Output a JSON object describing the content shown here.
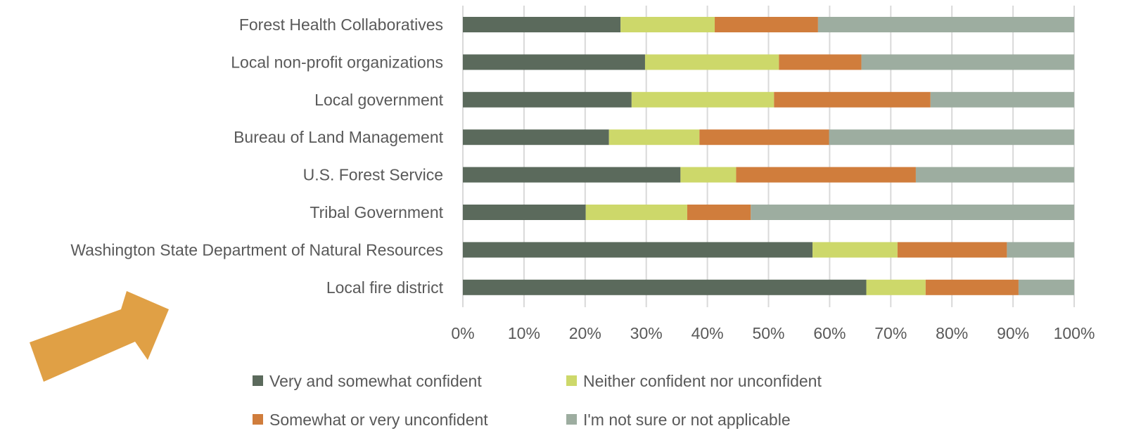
{
  "chart_data": {
    "type": "bar",
    "orientation": "horizontal",
    "stacked": "percent",
    "categories": [
      "Forest Health Collaboratives",
      "Local non-profit organizations",
      "Local government",
      "Bureau of Land Management",
      "U.S. Forest Service",
      "Tribal Government",
      "Washington State Department of Natural Resources",
      "Local fire district"
    ],
    "series": [
      {
        "name": "Very and somewhat confident",
        "color": "#5b6a5c",
        "values": [
          25.8,
          29.8,
          27.6,
          23.9,
          35.6,
          20.1,
          57.2,
          66.0
        ]
      },
      {
        "name": "Neither confident nor unconfident",
        "color": "#cdd86a",
        "values": [
          15.4,
          21.9,
          23.3,
          14.8,
          9.1,
          16.6,
          13.9,
          9.7
        ]
      },
      {
        "name": "Somewhat or very unconfident",
        "color": "#d07d3c",
        "values": [
          16.9,
          13.5,
          25.6,
          21.2,
          29.4,
          10.4,
          17.9,
          15.2
        ]
      },
      {
        "name": "I'm not sure or not applicable",
        "color": "#9dada0",
        "values": [
          41.9,
          34.8,
          23.5,
          40.1,
          25.9,
          52.9,
          11.0,
          9.1
        ]
      }
    ],
    "xlim": [
      0,
      100
    ],
    "xticks": [
      "0%",
      "10%",
      "20%",
      "30%",
      "40%",
      "50%",
      "60%",
      "70%",
      "80%",
      "90%",
      "100%"
    ],
    "grid": true,
    "legend_position": "bottom"
  },
  "annotation": {
    "type": "arrow",
    "color": "#e0a045",
    "icon": "arrow-icon"
  }
}
